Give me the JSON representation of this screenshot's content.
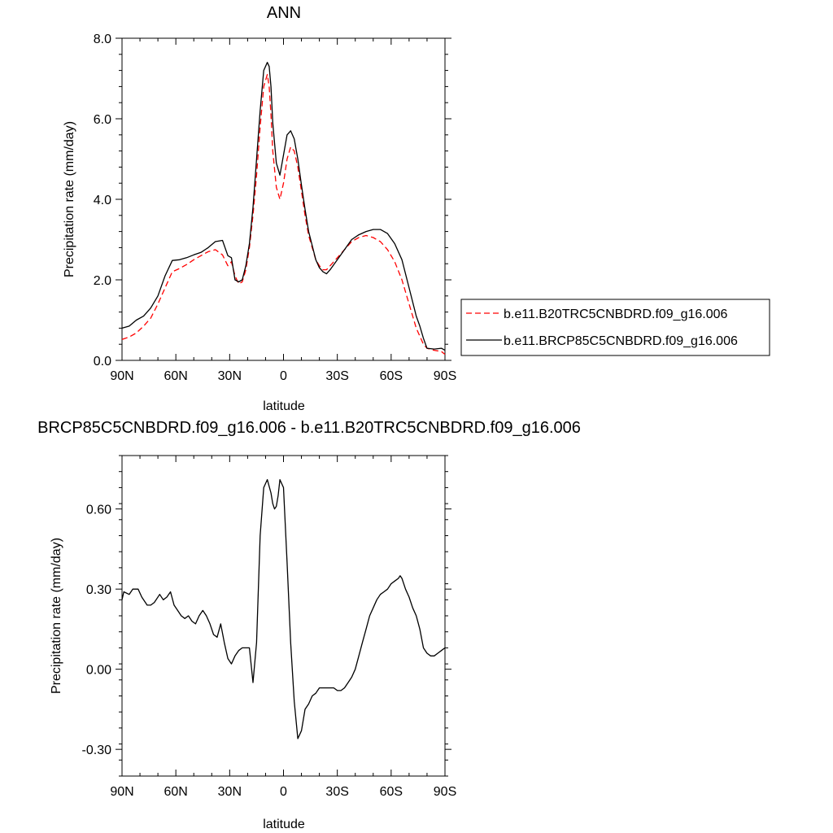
{
  "chart_data": [
    {
      "type": "line",
      "title": "ANN",
      "xlabel": "latitude",
      "ylabel": "Precipitation rate (mm/day)",
      "xlim": [
        90,
        -90
      ],
      "ylim": [
        0.0,
        8.0
      ],
      "x_ticks": [
        90,
        60,
        30,
        0,
        -30,
        -60,
        -90
      ],
      "x_tick_labels": [
        "90N",
        "60N",
        "30N",
        "0",
        "30S",
        "60S",
        "90S"
      ],
      "y_ticks": [
        0.0,
        2.0,
        4.0,
        6.0,
        8.0
      ],
      "y_tick_labels": [
        "0.0",
        "2.0",
        "4.0",
        "6.0",
        "8.0"
      ],
      "legend_position": "right",
      "series": [
        {
          "name": "b.e11.B20TRC5CNBDRD.f09_g16.006",
          "color": "#ff0000",
          "dash": "dashed",
          "x": [
            90,
            86,
            82,
            78,
            74,
            70,
            66,
            62,
            58,
            54,
            50,
            46,
            42,
            38,
            34,
            31,
            29,
            27,
            25,
            23,
            21,
            19,
            17,
            15,
            13,
            11,
            9,
            8,
            7,
            6,
            4,
            2,
            0,
            -2,
            -4,
            -6,
            -8,
            -10,
            -12,
            -14,
            -16,
            -18,
            -20,
            -22,
            -24,
            -26,
            -30,
            -34,
            -38,
            -42,
            -46,
            -50,
            -54,
            -58,
            -62,
            -66,
            -70,
            -74,
            -76,
            -78,
            -80,
            -84,
            -88,
            -90
          ],
          "y": [
            0.52,
            0.58,
            0.68,
            0.85,
            1.05,
            1.4,
            1.8,
            2.2,
            2.28,
            2.38,
            2.5,
            2.6,
            2.7,
            2.75,
            2.62,
            2.35,
            2.45,
            2.1,
            1.9,
            1.95,
            2.25,
            2.8,
            3.6,
            4.6,
            5.8,
            6.8,
            7.1,
            6.8,
            6.1,
            5.2,
            4.3,
            4.0,
            4.4,
            5.0,
            5.3,
            5.2,
            4.8,
            4.2,
            3.6,
            3.1,
            2.8,
            2.5,
            2.35,
            2.25,
            2.25,
            2.35,
            2.55,
            2.75,
            2.95,
            3.05,
            3.1,
            3.05,
            2.95,
            2.75,
            2.45,
            2.0,
            1.4,
            0.8,
            0.6,
            0.4,
            0.3,
            0.25,
            0.22,
            0.15
          ]
        },
        {
          "name": "b.e11.BRCP85C5CNBDRD.f09_g16.006",
          "color": "#000000",
          "dash": "solid",
          "x": [
            90,
            86,
            82,
            78,
            74,
            70,
            66,
            62,
            58,
            54,
            50,
            46,
            42,
            38,
            34,
            31,
            29,
            27,
            25,
            23,
            21,
            19,
            17,
            15,
            13,
            11,
            9,
            8,
            7,
            6,
            4,
            2,
            0,
            -2,
            -4,
            -6,
            -8,
            -10,
            -12,
            -14,
            -16,
            -18,
            -20,
            -22,
            -24,
            -26,
            -30,
            -34,
            -38,
            -42,
            -46,
            -50,
            -54,
            -58,
            -62,
            -66,
            -70,
            -74,
            -76,
            -78,
            -80,
            -84,
            -88,
            -90
          ],
          "y": [
            0.8,
            0.85,
            1.0,
            1.1,
            1.3,
            1.6,
            2.1,
            2.48,
            2.5,
            2.55,
            2.62,
            2.68,
            2.8,
            2.95,
            2.98,
            2.6,
            2.55,
            2.0,
            1.95,
            2.0,
            2.35,
            2.9,
            3.8,
            5.0,
            6.2,
            7.2,
            7.4,
            7.3,
            6.8,
            5.9,
            4.9,
            4.6,
            5.1,
            5.6,
            5.7,
            5.5,
            5.0,
            4.35,
            3.75,
            3.2,
            2.85,
            2.5,
            2.3,
            2.2,
            2.15,
            2.25,
            2.5,
            2.75,
            3.0,
            3.12,
            3.2,
            3.25,
            3.25,
            3.15,
            2.9,
            2.5,
            1.8,
            1.1,
            0.85,
            0.55,
            0.3,
            0.28,
            0.3,
            0.25
          ]
        }
      ]
    },
    {
      "type": "line",
      "title": "BRCP85C5CNBDRD.f09_g16.006 - b.e11.B20TRC5CNBDRD.f09_g16.006",
      "xlabel": "latitude",
      "ylabel": "Precipitation rate (mm/day)",
      "xlim": [
        90,
        -90
      ],
      "ylim": [
        -0.4,
        0.8
      ],
      "x_ticks": [
        90,
        60,
        30,
        0,
        -30,
        -60,
        -90
      ],
      "x_tick_labels": [
        "90N",
        "60N",
        "30N",
        "0",
        "30S",
        "60S",
        "90S"
      ],
      "y_ticks": [
        -0.3,
        0.0,
        0.3,
        0.6
      ],
      "y_tick_labels": [
        "-0.30",
        "0.00",
        "0.30",
        "0.60"
      ],
      "series": [
        {
          "color": "#000000",
          "dash": "solid",
          "x": [
            90,
            89,
            86,
            84,
            81,
            79,
            76,
            74,
            72,
            69,
            67,
            65,
            63,
            61,
            59,
            57,
            55,
            53,
            51,
            49,
            47,
            45,
            43,
            41,
            39,
            37,
            35,
            33,
            31,
            29,
            27,
            25,
            23,
            21,
            19,
            17,
            15,
            13,
            11,
            9,
            7,
            6,
            5,
            4,
            3,
            2,
            0,
            -2,
            -4,
            -6,
            -8,
            -10,
            -12,
            -14,
            -16,
            -18,
            -20,
            -22,
            -24,
            -26,
            -28,
            -30,
            -32,
            -34,
            -36,
            -38,
            -40,
            -42,
            -44,
            -46,
            -48,
            -50,
            -52,
            -54,
            -56,
            -58,
            -60,
            -62,
            -64,
            -65,
            -66,
            -67,
            -68,
            -70,
            -72,
            -74,
            -76,
            -78,
            -80,
            -82,
            -84,
            -86,
            -88,
            -90
          ],
          "y": [
            0.26,
            0.29,
            0.28,
            0.3,
            0.3,
            0.27,
            0.24,
            0.24,
            0.25,
            0.28,
            0.26,
            0.27,
            0.29,
            0.24,
            0.22,
            0.2,
            0.19,
            0.2,
            0.18,
            0.17,
            0.2,
            0.22,
            0.2,
            0.17,
            0.13,
            0.12,
            0.17,
            0.1,
            0.04,
            0.02,
            0.05,
            0.07,
            0.08,
            0.08,
            0.08,
            -0.05,
            0.1,
            0.5,
            0.68,
            0.71,
            0.66,
            0.62,
            0.6,
            0.61,
            0.65,
            0.71,
            0.68,
            0.4,
            0.1,
            -0.12,
            -0.26,
            -0.23,
            -0.15,
            -0.13,
            -0.1,
            -0.09,
            -0.07,
            -0.07,
            -0.07,
            -0.07,
            -0.07,
            -0.08,
            -0.08,
            -0.07,
            -0.05,
            -0.03,
            0.0,
            0.05,
            0.1,
            0.15,
            0.2,
            0.23,
            0.26,
            0.28,
            0.29,
            0.3,
            0.32,
            0.33,
            0.34,
            0.35,
            0.34,
            0.32,
            0.3,
            0.27,
            0.23,
            0.2,
            0.15,
            0.08,
            0.06,
            0.05,
            0.05,
            0.06,
            0.07,
            0.08
          ]
        }
      ]
    }
  ]
}
